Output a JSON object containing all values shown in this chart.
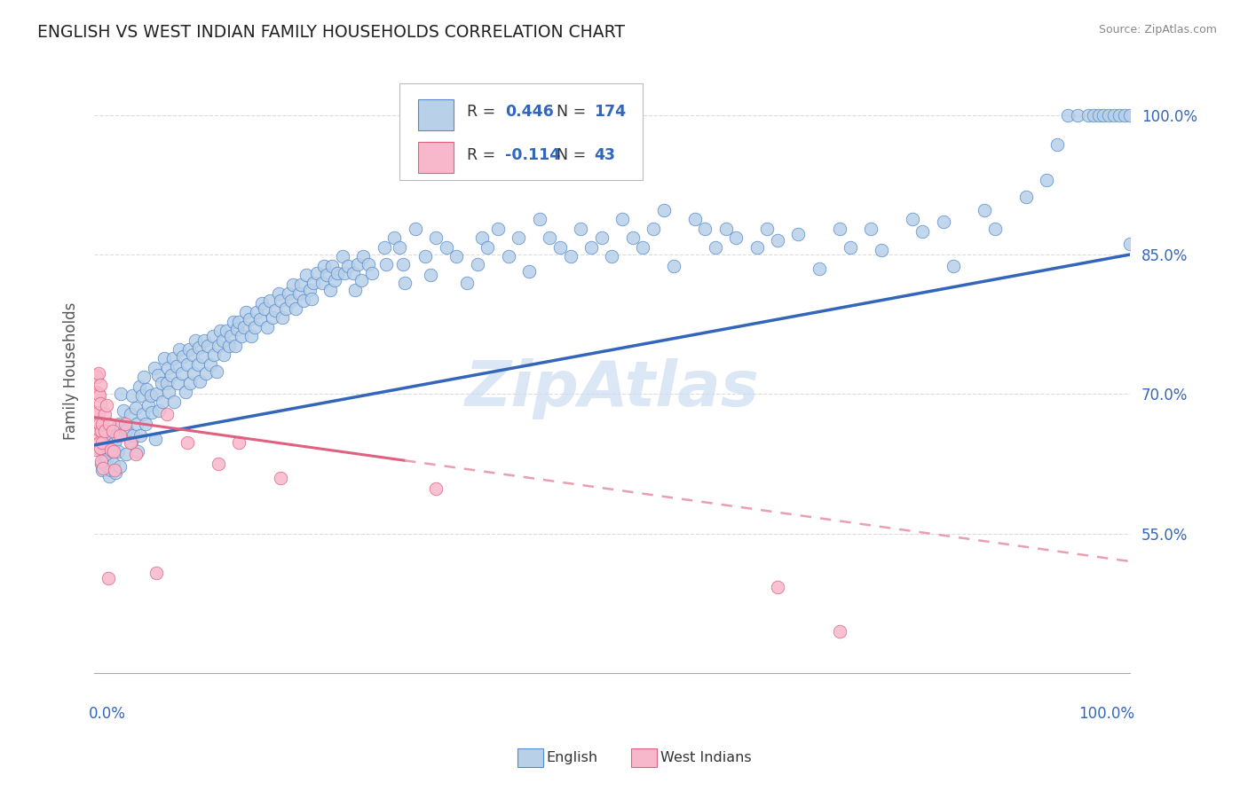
{
  "title": "ENGLISH VS WEST INDIAN FAMILY HOUSEHOLDS CORRELATION CHART",
  "source": "Source: ZipAtlas.com",
  "ylabel": "Family Households",
  "xlim": [
    0.0,
    1.0
  ],
  "ylim": [
    0.4,
    1.05
  ],
  "yticks": [
    0.55,
    0.7,
    0.85,
    1.0
  ],
  "ytick_labels": [
    "55.0%",
    "70.0%",
    "85.0%",
    "100.0%"
  ],
  "english_R": "0.446",
  "english_N": "174",
  "west_indian_R": "-0.114",
  "west_indian_N": "43",
  "english_face_color": "#b8d0e8",
  "english_edge_color": "#5588cc",
  "west_indian_face_color": "#f8b8cc",
  "west_indian_edge_color": "#e06080",
  "english_line_color": "#3366bb",
  "west_indian_solid_color": "#e06080",
  "west_indian_dash_color": "#e8a0b0",
  "R_text_color": "#3366bb",
  "axis_label_color": "#3366bb",
  "title_color": "#222222",
  "source_color": "#888888",
  "background_color": "#ffffff",
  "watermark_color": "#ccddf0",
  "legend_box_color": "#eeeeee",
  "legend_border_color": "#cccccc",
  "wi_line_intercept": 0.675,
  "wi_line_slope": -0.155,
  "eng_line_intercept": 0.645,
  "eng_line_slope": 0.205,
  "english_scatter": [
    [
      0.005,
      0.64
    ],
    [
      0.007,
      0.625
    ],
    [
      0.008,
      0.618
    ],
    [
      0.01,
      0.635
    ],
    [
      0.01,
      0.65
    ],
    [
      0.01,
      0.628
    ],
    [
      0.012,
      0.642
    ],
    [
      0.012,
      0.63
    ],
    [
      0.013,
      0.622
    ],
    [
      0.015,
      0.658
    ],
    [
      0.015,
      0.612
    ],
    [
      0.016,
      0.618
    ],
    [
      0.018,
      0.638
    ],
    [
      0.018,
      0.652
    ],
    [
      0.019,
      0.625
    ],
    [
      0.02,
      0.648
    ],
    [
      0.021,
      0.615
    ],
    [
      0.022,
      0.655
    ],
    [
      0.023,
      0.638
    ],
    [
      0.024,
      0.668
    ],
    [
      0.025,
      0.622
    ],
    [
      0.026,
      0.7
    ],
    [
      0.028,
      0.682
    ],
    [
      0.03,
      0.66
    ],
    [
      0.031,
      0.635
    ],
    [
      0.032,
      0.662
    ],
    [
      0.035,
      0.678
    ],
    [
      0.036,
      0.648
    ],
    [
      0.037,
      0.698
    ],
    [
      0.038,
      0.655
    ],
    [
      0.04,
      0.685
    ],
    [
      0.041,
      0.668
    ],
    [
      0.042,
      0.638
    ],
    [
      0.044,
      0.708
    ],
    [
      0.045,
      0.655
    ],
    [
      0.046,
      0.698
    ],
    [
      0.047,
      0.678
    ],
    [
      0.048,
      0.718
    ],
    [
      0.05,
      0.668
    ],
    [
      0.051,
      0.705
    ],
    [
      0.052,
      0.688
    ],
    [
      0.055,
      0.698
    ],
    [
      0.056,
      0.68
    ],
    [
      0.058,
      0.728
    ],
    [
      0.059,
      0.652
    ],
    [
      0.06,
      0.7
    ],
    [
      0.062,
      0.72
    ],
    [
      0.063,
      0.682
    ],
    [
      0.065,
      0.712
    ],
    [
      0.066,
      0.692
    ],
    [
      0.068,
      0.738
    ],
    [
      0.07,
      0.712
    ],
    [
      0.071,
      0.728
    ],
    [
      0.072,
      0.702
    ],
    [
      0.075,
      0.72
    ],
    [
      0.076,
      0.738
    ],
    [
      0.077,
      0.692
    ],
    [
      0.08,
      0.73
    ],
    [
      0.081,
      0.712
    ],
    [
      0.082,
      0.748
    ],
    [
      0.085,
      0.722
    ],
    [
      0.086,
      0.74
    ],
    [
      0.088,
      0.702
    ],
    [
      0.09,
      0.732
    ],
    [
      0.092,
      0.748
    ],
    [
      0.093,
      0.712
    ],
    [
      0.095,
      0.742
    ],
    [
      0.096,
      0.722
    ],
    [
      0.098,
      0.758
    ],
    [
      0.1,
      0.732
    ],
    [
      0.101,
      0.75
    ],
    [
      0.102,
      0.714
    ],
    [
      0.105,
      0.74
    ],
    [
      0.106,
      0.758
    ],
    [
      0.108,
      0.722
    ],
    [
      0.11,
      0.752
    ],
    [
      0.112,
      0.732
    ],
    [
      0.115,
      0.762
    ],
    [
      0.116,
      0.742
    ],
    [
      0.118,
      0.724
    ],
    [
      0.12,
      0.752
    ],
    [
      0.122,
      0.768
    ],
    [
      0.124,
      0.758
    ],
    [
      0.125,
      0.742
    ],
    [
      0.128,
      0.768
    ],
    [
      0.13,
      0.752
    ],
    [
      0.132,
      0.762
    ],
    [
      0.135,
      0.778
    ],
    [
      0.136,
      0.752
    ],
    [
      0.138,
      0.77
    ],
    [
      0.14,
      0.778
    ],
    [
      0.142,
      0.762
    ],
    [
      0.145,
      0.772
    ],
    [
      0.147,
      0.788
    ],
    [
      0.15,
      0.78
    ],
    [
      0.152,
      0.762
    ],
    [
      0.155,
      0.772
    ],
    [
      0.157,
      0.788
    ],
    [
      0.16,
      0.78
    ],
    [
      0.162,
      0.798
    ],
    [
      0.165,
      0.792
    ],
    [
      0.167,
      0.772
    ],
    [
      0.17,
      0.8
    ],
    [
      0.172,
      0.782
    ],
    [
      0.175,
      0.79
    ],
    [
      0.178,
      0.808
    ],
    [
      0.18,
      0.8
    ],
    [
      0.182,
      0.782
    ],
    [
      0.185,
      0.792
    ],
    [
      0.188,
      0.808
    ],
    [
      0.19,
      0.8
    ],
    [
      0.192,
      0.818
    ],
    [
      0.195,
      0.792
    ],
    [
      0.198,
      0.808
    ],
    [
      0.2,
      0.818
    ],
    [
      0.202,
      0.8
    ],
    [
      0.205,
      0.828
    ],
    [
      0.208,
      0.812
    ],
    [
      0.21,
      0.802
    ],
    [
      0.212,
      0.82
    ],
    [
      0.215,
      0.83
    ],
    [
      0.22,
      0.82
    ],
    [
      0.222,
      0.838
    ],
    [
      0.225,
      0.828
    ],
    [
      0.228,
      0.812
    ],
    [
      0.23,
      0.838
    ],
    [
      0.232,
      0.822
    ],
    [
      0.235,
      0.83
    ],
    [
      0.24,
      0.848
    ],
    [
      0.242,
      0.83
    ],
    [
      0.245,
      0.838
    ],
    [
      0.25,
      0.83
    ],
    [
      0.252,
      0.812
    ],
    [
      0.255,
      0.84
    ],
    [
      0.258,
      0.822
    ],
    [
      0.26,
      0.848
    ],
    [
      0.265,
      0.84
    ],
    [
      0.268,
      0.83
    ],
    [
      0.28,
      0.858
    ],
    [
      0.282,
      0.84
    ],
    [
      0.29,
      0.868
    ],
    [
      0.295,
      0.858
    ],
    [
      0.298,
      0.84
    ],
    [
      0.3,
      0.82
    ],
    [
      0.31,
      0.878
    ],
    [
      0.32,
      0.848
    ],
    [
      0.325,
      0.828
    ],
    [
      0.33,
      0.868
    ],
    [
      0.34,
      0.858
    ],
    [
      0.35,
      0.848
    ],
    [
      0.36,
      0.82
    ],
    [
      0.37,
      0.84
    ],
    [
      0.375,
      0.868
    ],
    [
      0.38,
      0.858
    ],
    [
      0.39,
      0.878
    ],
    [
      0.4,
      0.848
    ],
    [
      0.41,
      0.868
    ],
    [
      0.42,
      0.832
    ],
    [
      0.43,
      0.888
    ],
    [
      0.44,
      0.868
    ],
    [
      0.45,
      0.858
    ],
    [
      0.46,
      0.848
    ],
    [
      0.47,
      0.878
    ],
    [
      0.48,
      0.858
    ],
    [
      0.49,
      0.868
    ],
    [
      0.5,
      0.848
    ],
    [
      0.51,
      0.888
    ],
    [
      0.52,
      0.868
    ],
    [
      0.53,
      0.858
    ],
    [
      0.54,
      0.878
    ],
    [
      0.55,
      0.898
    ],
    [
      0.56,
      0.838
    ],
    [
      0.58,
      0.888
    ],
    [
      0.59,
      0.878
    ],
    [
      0.6,
      0.858
    ],
    [
      0.61,
      0.878
    ],
    [
      0.62,
      0.868
    ],
    [
      0.64,
      0.858
    ],
    [
      0.65,
      0.878
    ],
    [
      0.66,
      0.865
    ],
    [
      0.68,
      0.872
    ],
    [
      0.7,
      0.835
    ],
    [
      0.72,
      0.878
    ],
    [
      0.73,
      0.858
    ],
    [
      0.75,
      0.878
    ],
    [
      0.76,
      0.855
    ],
    [
      0.79,
      0.888
    ],
    [
      0.8,
      0.875
    ],
    [
      0.82,
      0.885
    ],
    [
      0.83,
      0.838
    ],
    [
      0.86,
      0.898
    ],
    [
      0.87,
      0.878
    ],
    [
      0.9,
      0.912
    ],
    [
      0.92,
      0.93
    ],
    [
      0.93,
      0.968
    ],
    [
      0.94,
      1.0
    ],
    [
      0.95,
      1.0
    ],
    [
      0.96,
      1.0
    ],
    [
      0.965,
      1.0
    ],
    [
      0.97,
      1.0
    ],
    [
      0.975,
      1.0
    ],
    [
      0.98,
      1.0
    ],
    [
      0.985,
      1.0
    ],
    [
      0.99,
      1.0
    ],
    [
      0.995,
      1.0
    ],
    [
      1.0,
      1.0
    ],
    [
      1.0,
      0.862
    ]
  ],
  "west_indian_scatter": [
    [
      0.002,
      0.72
    ],
    [
      0.002,
      0.68
    ],
    [
      0.002,
      0.64
    ],
    [
      0.003,
      0.702
    ],
    [
      0.003,
      0.718
    ],
    [
      0.003,
      0.658
    ],
    [
      0.004,
      0.68
    ],
    [
      0.004,
      0.7
    ],
    [
      0.004,
      0.662
    ],
    [
      0.004,
      0.722
    ],
    [
      0.005,
      0.648
    ],
    [
      0.005,
      0.698
    ],
    [
      0.005,
      0.668
    ],
    [
      0.006,
      0.69
    ],
    [
      0.006,
      0.642
    ],
    [
      0.006,
      0.71
    ],
    [
      0.007,
      0.66
    ],
    [
      0.007,
      0.628
    ],
    [
      0.008,
      0.668
    ],
    [
      0.008,
      0.648
    ],
    [
      0.009,
      0.62
    ],
    [
      0.01,
      0.678
    ],
    [
      0.01,
      0.66
    ],
    [
      0.012,
      0.688
    ],
    [
      0.014,
      0.502
    ],
    [
      0.015,
      0.668
    ],
    [
      0.016,
      0.64
    ],
    [
      0.018,
      0.66
    ],
    [
      0.019,
      0.638
    ],
    [
      0.02,
      0.618
    ],
    [
      0.025,
      0.655
    ],
    [
      0.03,
      0.668
    ],
    [
      0.035,
      0.648
    ],
    [
      0.04,
      0.635
    ],
    [
      0.06,
      0.508
    ],
    [
      0.07,
      0.678
    ],
    [
      0.09,
      0.648
    ],
    [
      0.12,
      0.625
    ],
    [
      0.14,
      0.648
    ],
    [
      0.18,
      0.61
    ],
    [
      0.33,
      0.598
    ],
    [
      0.66,
      0.492
    ],
    [
      0.72,
      0.445
    ]
  ]
}
